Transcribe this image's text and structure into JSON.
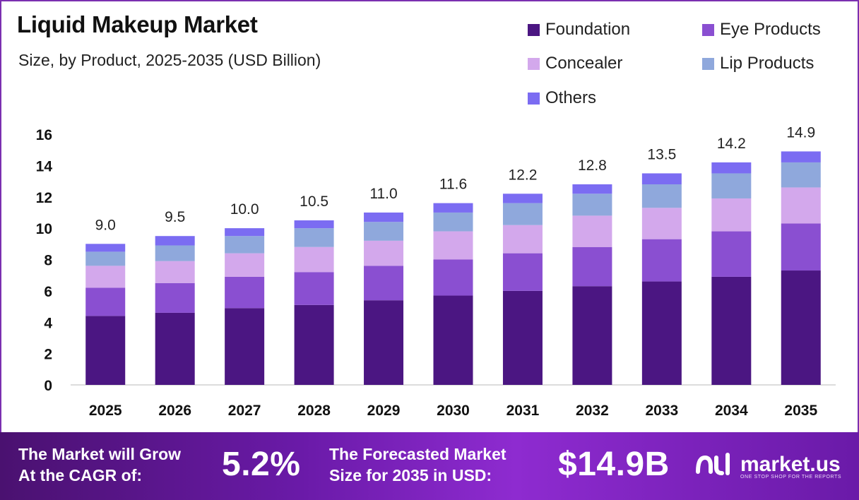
{
  "title": "Liquid Makeup Market",
  "subtitle": "Size, by Product, 2025-2035 (USD Billion)",
  "legend": [
    {
      "label": "Foundation",
      "color": "#4b1682"
    },
    {
      "label": "Eye Products",
      "color": "#8a4fd1"
    },
    {
      "label": "Concealer",
      "color": "#d3a8ec"
    },
    {
      "label": "Lip Products",
      "color": "#8fa8dc"
    },
    {
      "label": "Others",
      "color": "#7b6cf2"
    }
  ],
  "chart_data": {
    "type": "bar",
    "stacked": true,
    "categories": [
      "2025",
      "2026",
      "2027",
      "2028",
      "2029",
      "2030",
      "2031",
      "2032",
      "2033",
      "2034",
      "2035"
    ],
    "series": [
      {
        "name": "Foundation",
        "color": "#4b1682",
        "values": [
          4.4,
          4.6,
          4.9,
          5.1,
          5.4,
          5.7,
          6.0,
          6.3,
          6.6,
          6.9,
          7.3
        ]
      },
      {
        "name": "Eye Products",
        "color": "#8a4fd1",
        "values": [
          1.8,
          1.9,
          2.0,
          2.1,
          2.2,
          2.3,
          2.4,
          2.5,
          2.7,
          2.9,
          3.0
        ]
      },
      {
        "name": "Concealer",
        "color": "#d3a8ec",
        "values": [
          1.4,
          1.4,
          1.5,
          1.6,
          1.6,
          1.8,
          1.8,
          2.0,
          2.0,
          2.1,
          2.3
        ]
      },
      {
        "name": "Lip Products",
        "color": "#8fa8dc",
        "values": [
          0.9,
          1.0,
          1.1,
          1.2,
          1.2,
          1.2,
          1.4,
          1.4,
          1.5,
          1.6,
          1.6
        ]
      },
      {
        "name": "Others",
        "color": "#7b6cf2",
        "values": [
          0.5,
          0.6,
          0.5,
          0.5,
          0.6,
          0.6,
          0.6,
          0.6,
          0.7,
          0.7,
          0.7
        ]
      }
    ],
    "totals": [
      "9.0",
      "9.5",
      "10.0",
      "10.5",
      "11.0",
      "11.6",
      "12.2",
      "12.8",
      "13.5",
      "14.2",
      "14.9"
    ],
    "yticks": [
      0,
      2,
      4,
      6,
      8,
      10,
      12,
      14,
      16
    ],
    "ylim": [
      0,
      16
    ],
    "grid": false,
    "legend_position": "top-right"
  },
  "footer": {
    "cagr_label_line1": "The Market will Grow",
    "cagr_label_line2": "At the CAGR of:",
    "cagr_value": "5.2%",
    "forecast_label_line1": "The Forecasted Market",
    "forecast_label_line2": "Size for 2035 in USD:",
    "forecast_value": "$14.9B",
    "brand_name": "market.us",
    "brand_tagline": "ONE STOP SHOP FOR THE REPORTS"
  }
}
